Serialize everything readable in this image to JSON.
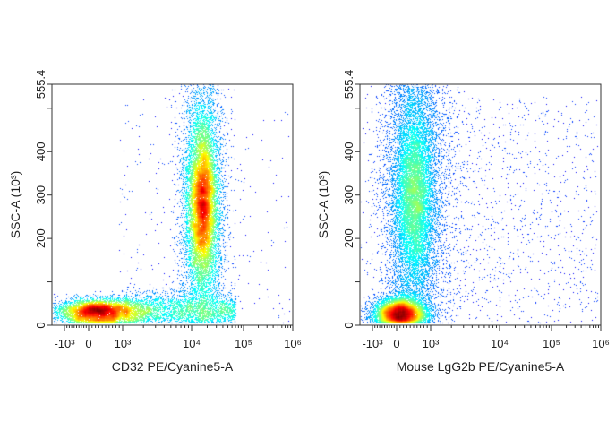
{
  "chart_data": [
    {
      "type": "scatter",
      "subtype": "flow-cytometry density plot",
      "xlabel": "CD32 PE/Cyanine5-A",
      "ylabel": "SSC-A (10³)",
      "x_scale": "biexponential",
      "x_ticks": [
        {
          "value": -1000,
          "label": "-10³"
        },
        {
          "value": 0,
          "label": "0"
        },
        {
          "value": 1000,
          "label": "10³"
        },
        {
          "value": 10000,
          "label": "10⁴"
        },
        {
          "value": 100000,
          "label": "10⁵"
        },
        {
          "value": 1000000,
          "label": "10⁶"
        }
      ],
      "y_ticks": [
        {
          "value": 0,
          "label": "0"
        },
        {
          "value": 100,
          "label": ""
        },
        {
          "value": 200,
          "label": "200"
        },
        {
          "value": 300,
          "label": "300"
        },
        {
          "value": 400,
          "label": "400"
        },
        {
          "value": 500,
          "label": ""
        },
        {
          "value": 555.4,
          "label": "555.4"
        }
      ],
      "ylim": [
        0,
        555.4
      ],
      "xlim": [
        -1500,
        1000000
      ],
      "colormap": "jet density",
      "populations": [
        {
          "x_center": 16000,
          "y_center": 280,
          "relative_size": 0.55
        },
        {
          "x_center": 300,
          "y_center": 30,
          "relative_size": 0.3
        },
        {
          "x_center": 8000,
          "y_center": 35,
          "relative_size": 0.12
        },
        {
          "x_center": 50000,
          "y_center": 200,
          "relative_size": 0.01
        }
      ]
    },
    {
      "type": "scatter",
      "subtype": "flow-cytometry density plot",
      "xlabel": "Mouse LgG2b PE/Cyanine5-A",
      "ylabel": "SSC-A (10³)",
      "x_scale": "biexponential",
      "x_ticks": [
        {
          "value": -1000,
          "label": "-10³"
        },
        {
          "value": 0,
          "label": "0"
        },
        {
          "value": 1000,
          "label": "10³"
        },
        {
          "value": 10000,
          "label": "10⁴"
        },
        {
          "value": 100000,
          "label": "10⁵"
        },
        {
          "value": 1000000,
          "label": "10⁶"
        }
      ],
      "y_ticks": [
        {
          "value": 0,
          "label": "0"
        },
        {
          "value": 100,
          "label": ""
        },
        {
          "value": 200,
          "label": "200"
        },
        {
          "value": 300,
          "label": "300"
        },
        {
          "value": 400,
          "label": "400"
        },
        {
          "value": 500,
          "label": ""
        },
        {
          "value": 555.4,
          "label": "555.4"
        }
      ],
      "ylim": [
        0,
        555.4
      ],
      "xlim": [
        -1500,
        1000000
      ],
      "colormap": "jet density",
      "populations": [
        {
          "x_center": 500,
          "y_center": 300,
          "relative_size": 0.58
        },
        {
          "x_center": 100,
          "y_center": 25,
          "relative_size": 0.37
        },
        {
          "x_center": 20000,
          "y_center": 250,
          "relative_size": 0.05
        }
      ]
    }
  ]
}
